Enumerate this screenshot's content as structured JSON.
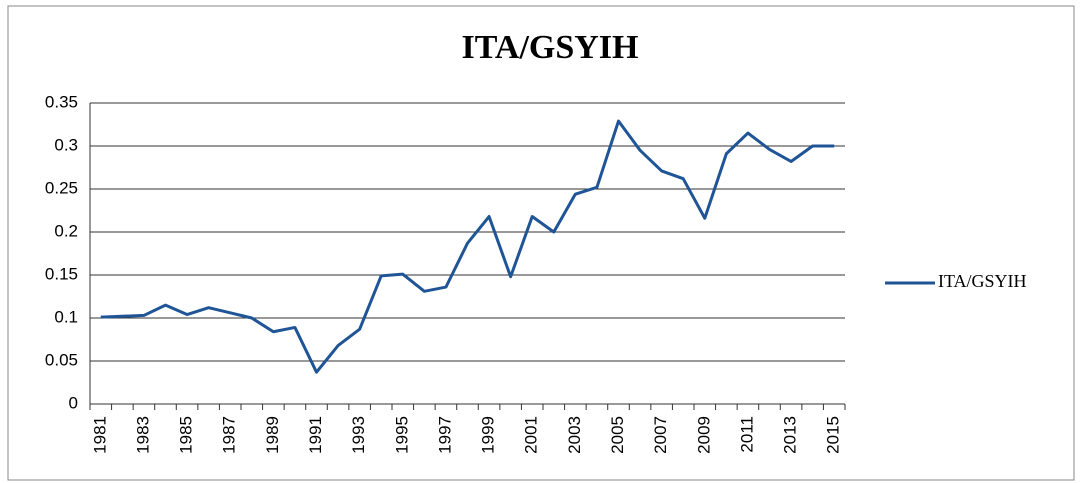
{
  "chart_data": {
    "type": "line",
    "title": "ITA/GSYIH",
    "categories": [
      "1981",
      null,
      "1983",
      null,
      "1985",
      null,
      "1987",
      null,
      "1989",
      null,
      "1991",
      null,
      "1993",
      null,
      "1995",
      null,
      "1997",
      null,
      "1999",
      null,
      "2001",
      null,
      "2003",
      null,
      "2005",
      null,
      "2007",
      null,
      "2009",
      null,
      "2011",
      null,
      "2013",
      null,
      "2015"
    ],
    "series": [
      {
        "name": "ITA/GSYIH",
        "color": "#1f5596",
        "values": [
          0.101,
          0.102,
          0.103,
          0.115,
          0.104,
          0.112,
          0.106,
          0.1,
          0.084,
          0.089,
          0.037,
          0.068,
          0.087,
          0.149,
          0.151,
          0.131,
          0.136,
          0.187,
          0.218,
          0.148,
          0.218,
          0.2,
          0.244,
          0.252,
          0.329,
          0.295,
          0.271,
          0.262,
          0.216,
          0.291,
          0.315,
          0.296,
          0.282,
          0.3,
          0.3
        ]
      }
    ],
    "ylim": [
      0,
      0.35
    ],
    "yticks": [
      0,
      0.05,
      0.1,
      0.15,
      0.2,
      0.25,
      0.3,
      0.35
    ],
    "grid": true,
    "legend": "right"
  }
}
